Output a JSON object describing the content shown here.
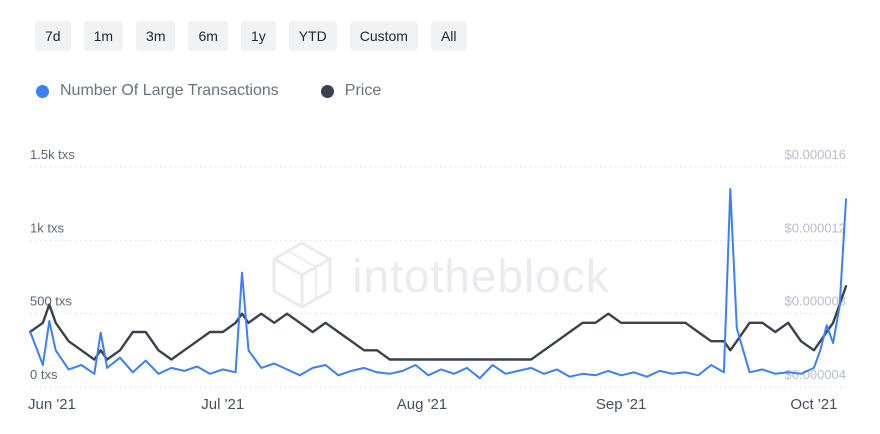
{
  "toolbar": {
    "ranges": [
      "7d",
      "1m",
      "3m",
      "6m",
      "1y",
      "YTD",
      "Custom",
      "All"
    ]
  },
  "legend": {
    "items": [
      {
        "label": "Number Of Large Transactions",
        "color": "#3d7ff5"
      },
      {
        "label": "Price",
        "color": "#3a414c"
      }
    ]
  },
  "watermark": {
    "text": "intotheblock"
  },
  "chart_data": {
    "type": "line",
    "title": "",
    "grid": "dotted-horizontal",
    "legend_position": "top-left",
    "x_range": [
      0,
      127
    ],
    "x_days": [
      0,
      2,
      3,
      4,
      6,
      8,
      10,
      11,
      12,
      14,
      16,
      18,
      20,
      22,
      24,
      26,
      28,
      30,
      32,
      33,
      34,
      36,
      38,
      40,
      42,
      44,
      46,
      48,
      50,
      52,
      54,
      56,
      58,
      60,
      62,
      64,
      66,
      68,
      70,
      72,
      74,
      76,
      78,
      80,
      82,
      84,
      86,
      88,
      90,
      92,
      94,
      96,
      98,
      100,
      102,
      104,
      106,
      108,
      109,
      110,
      112,
      114,
      116,
      118,
      120,
      122,
      123,
      124,
      125,
      126,
      127
    ],
    "series": [
      {
        "name": "Number Of Large Transactions",
        "axis": "left",
        "color": "#3d7ff5",
        "width": 2,
        "values": [
          380,
          150,
          450,
          250,
          120,
          150,
          90,
          370,
          130,
          200,
          100,
          180,
          90,
          130,
          110,
          140,
          90,
          120,
          100,
          780,
          250,
          130,
          160,
          120,
          80,
          130,
          150,
          80,
          110,
          130,
          100,
          90,
          110,
          150,
          80,
          120,
          90,
          130,
          60,
          150,
          90,
          110,
          130,
          90,
          120,
          70,
          90,
          80,
          110,
          80,
          100,
          70,
          110,
          90,
          100,
          80,
          150,
          100,
          1350,
          400,
          100,
          120,
          90,
          100,
          90,
          130,
          250,
          420,
          300,
          550,
          1280
        ]
      },
      {
        "name": "Price",
        "axis": "right",
        "color": "#3a414c",
        "width": 2.4,
        "values": [
          7e-06,
          7.5e-06,
          8.5e-06,
          7.5e-06,
          6.5e-06,
          6e-06,
          5.5e-06,
          6e-06,
          5.5e-06,
          6e-06,
          7e-06,
          7e-06,
          6e-06,
          5.5e-06,
          6e-06,
          6.5e-06,
          7e-06,
          7e-06,
          7.5e-06,
          8e-06,
          7.5e-06,
          8e-06,
          7.5e-06,
          8e-06,
          7.5e-06,
          7e-06,
          7.5e-06,
          7e-06,
          6.5e-06,
          6e-06,
          6e-06,
          5.5e-06,
          5.5e-06,
          5.5e-06,
          5.5e-06,
          5.5e-06,
          5.5e-06,
          5.5e-06,
          5.5e-06,
          5.5e-06,
          5.5e-06,
          5.5e-06,
          5.5e-06,
          6e-06,
          6.5e-06,
          7e-06,
          7.5e-06,
          7.5e-06,
          8e-06,
          7.5e-06,
          7.5e-06,
          7.5e-06,
          7.5e-06,
          7.5e-06,
          7.5e-06,
          7e-06,
          6.5e-06,
          6.5e-06,
          6e-06,
          6.5e-06,
          7.5e-06,
          7.5e-06,
          7e-06,
          7.5e-06,
          6.5e-06,
          6e-06,
          6.5e-06,
          7e-06,
          7.5e-06,
          8.5e-06,
          9.5e-06
        ]
      }
    ],
    "left_axis": {
      "min": 0,
      "max": 1500,
      "label_color": "#5d6773",
      "ticks": [
        {
          "value": 0,
          "label": "0 txs"
        },
        {
          "value": 500,
          "label": "500 txs"
        },
        {
          "value": 1000,
          "label": "1k txs"
        },
        {
          "value": 1500,
          "label": "1.5k txs"
        }
      ]
    },
    "right_axis": {
      "min": 4e-06,
      "max": 1.6e-05,
      "label_color": "#b8bdcd",
      "ticks": [
        {
          "value": 4e-06,
          "label": "$0.000004"
        },
        {
          "value": 8e-06,
          "label": "$0.000008"
        },
        {
          "value": 1.2e-05,
          "label": "$0.000012"
        },
        {
          "value": 1.6e-05,
          "label": "$0.000016"
        }
      ]
    },
    "x_axis": {
      "label_color": "#454f5b",
      "ticks": [
        {
          "day": 0,
          "label": "Jun '21"
        },
        {
          "day": 30,
          "label": "Jul '21"
        },
        {
          "day": 61,
          "label": "Aug '21"
        },
        {
          "day": 92,
          "label": "Sep '21"
        },
        {
          "day": 122,
          "label": "Oct '21"
        }
      ]
    },
    "gridline_color": "#d8dce2"
  }
}
